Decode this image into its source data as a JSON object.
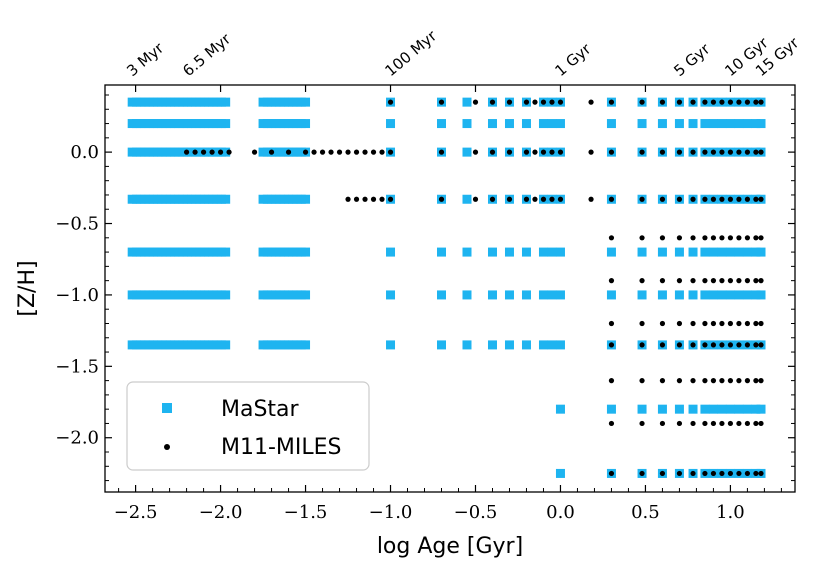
{
  "chart_data": {
    "type": "scatter",
    "xlabel": "log Age [Gyr]",
    "ylabel": "[Z/H]",
    "xlim": [
      -2.68,
      1.38
    ],
    "ylim": [
      -2.38,
      0.47
    ],
    "xticks": [
      {
        "value": -2.5,
        "label": "−2.5"
      },
      {
        "value": -2.0,
        "label": "−2.0"
      },
      {
        "value": -1.5,
        "label": "−1.5"
      },
      {
        "value": -1.0,
        "label": "−1.0"
      },
      {
        "value": -0.5,
        "label": "−0.5"
      },
      {
        "value": 0.0,
        "label": "0.0"
      },
      {
        "value": 0.5,
        "label": "0.5"
      },
      {
        "value": 1.0,
        "label": "1.0"
      }
    ],
    "yticks": [
      {
        "value": 0.0,
        "label": "0.0"
      },
      {
        "value": -0.5,
        "label": "−0.5"
      },
      {
        "value": -1.0,
        "label": "−1.0"
      },
      {
        "value": -1.5,
        "label": "−1.5"
      },
      {
        "value": -2.0,
        "label": "−2.0"
      }
    ],
    "top_axis_labels": [
      {
        "value": -2.52,
        "label": "3 Myr"
      },
      {
        "value": -2.19,
        "label": "6.5 Myr"
      },
      {
        "value": -1.0,
        "label": "100 Myr"
      },
      {
        "value": 0.0,
        "label": "1 Gyr"
      },
      {
        "value": 0.7,
        "label": "5 Gyr"
      },
      {
        "value": 1.0,
        "label": "10 Gyr"
      },
      {
        "value": 1.18,
        "label": "15 Gyr"
      }
    ],
    "legend": {
      "position": "lower-left",
      "entries": [
        "MaStar",
        "M11-MILES"
      ]
    },
    "colors": {
      "mastar": "#1EB4F0",
      "m11": "#000000"
    },
    "series": [
      {
        "name": "MaStar",
        "marker": "square",
        "young_bands": {
          "metallicities": [
            0.35,
            0.2,
            0.0,
            -0.33,
            -0.7,
            -1.0,
            -1.35
          ],
          "ranges": [
            [
              -2.52,
              -1.95
            ],
            [
              -1.75,
              -1.5
            ]
          ]
        },
        "grid": [
          {
            "z": [
              0.35,
              0.2,
              0.0,
              -0.33,
              -0.7,
              -1.0,
              -1.35
            ],
            "ages": [
              -1.0,
              -0.7,
              -0.55,
              -0.4,
              -0.3,
              -0.2,
              -0.1,
              -0.05,
              0.0,
              0.3,
              0.48,
              0.6,
              0.7,
              0.78,
              0.85,
              0.9,
              0.95,
              1.0,
              1.05,
              1.1,
              1.15,
              1.18
            ]
          },
          {
            "z": [
              -1.8
            ],
            "ages": [
              0.0,
              0.3,
              0.48,
              0.6,
              0.7,
              0.78,
              0.85,
              0.9,
              0.95,
              1.0,
              1.05,
              1.1,
              1.15,
              1.18
            ]
          },
          {
            "z": [
              -2.25
            ],
            "ages": [
              0.0,
              0.3,
              0.48,
              0.6,
              0.7,
              0.78,
              0.85,
              0.9,
              0.95,
              1.0,
              1.05,
              1.1,
              1.15,
              1.18
            ]
          }
        ]
      },
      {
        "name": "M11-MILES",
        "marker": "circle",
        "grid": [
          {
            "z": [
              0.35
            ],
            "ages": [
              -1.0,
              -0.7,
              -0.5,
              -0.4,
              -0.3,
              -0.2,
              -0.15,
              -0.1,
              -0.05,
              0.0,
              0.18,
              0.3,
              0.48,
              0.6,
              0.7,
              0.78,
              0.85,
              0.9,
              0.95,
              1.0,
              1.05,
              1.1,
              1.15,
              1.18
            ]
          },
          {
            "z": [
              0.0
            ],
            "ages": [
              -2.2,
              -2.15,
              -2.1,
              -2.05,
              -2.0,
              -1.95,
              -1.8,
              -1.7,
              -1.6,
              -1.5,
              -1.45,
              -1.4,
              -1.35,
              -1.3,
              -1.25,
              -1.2,
              -1.15,
              -1.1,
              -1.05,
              -1.0,
              -0.7,
              -0.5,
              -0.4,
              -0.3,
              -0.2,
              -0.15,
              -0.1,
              -0.05,
              0.0,
              0.18,
              0.3,
              0.48,
              0.6,
              0.7,
              0.78,
              0.85,
              0.9,
              0.95,
              1.0,
              1.05,
              1.1,
              1.15,
              1.18
            ]
          },
          {
            "z": [
              -0.33
            ],
            "ages": [
              -1.25,
              -1.2,
              -1.15,
              -1.1,
              -1.05,
              -1.0,
              -0.7,
              -0.5,
              -0.4,
              -0.3,
              -0.2,
              -0.15,
              -0.1,
              -0.05,
              0.0,
              0.18,
              0.3,
              0.48,
              0.6,
              0.7,
              0.78,
              0.85,
              0.9,
              0.95,
              1.0,
              1.05,
              1.1,
              1.15,
              1.18
            ]
          },
          {
            "z": [
              -0.6,
              -0.9,
              -1.2,
              -1.6,
              -1.9
            ],
            "ages": [
              0.3,
              0.48,
              0.6,
              0.7,
              0.78,
              0.85,
              0.9,
              0.95,
              1.0,
              1.05,
              1.1,
              1.15,
              1.18
            ]
          },
          {
            "z": [
              -1.35,
              -2.25
            ],
            "ages": [
              0.3,
              0.48,
              0.6,
              0.7,
              0.78,
              0.85,
              0.9,
              0.95,
              1.0,
              1.05,
              1.1,
              1.15,
              1.18
            ]
          }
        ]
      }
    ]
  }
}
